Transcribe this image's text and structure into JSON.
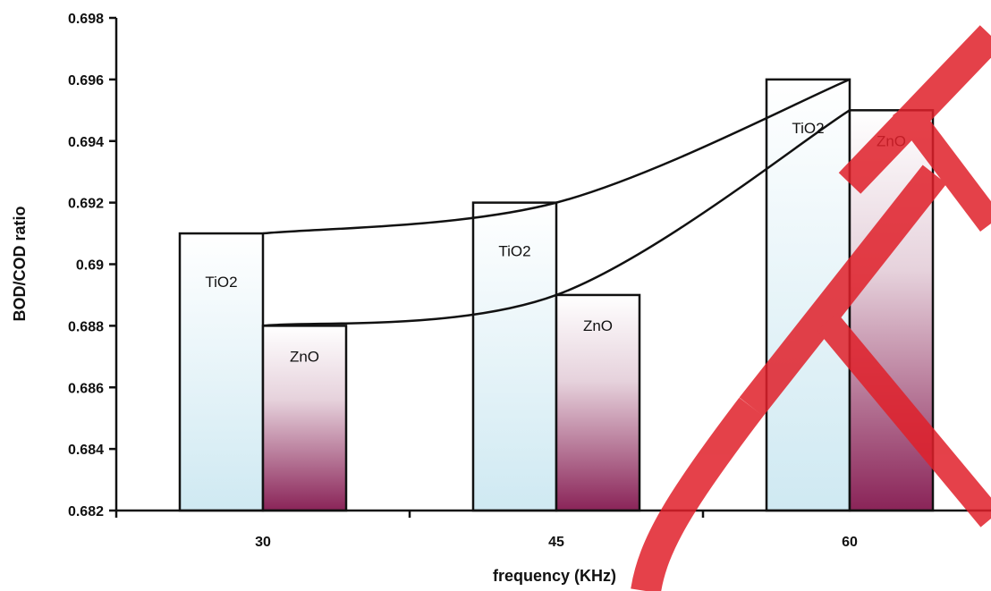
{
  "chart_data": {
    "type": "bar",
    "xlabel": "frequency (KHz)",
    "ylabel": "BOD/COD ratio",
    "categories": [
      "30",
      "45",
      "60"
    ],
    "ylim": [
      0.682,
      0.698
    ],
    "y_ticks": [
      "0.682",
      "0.684",
      "0.686",
      "0.688",
      "0.69",
      "0.692",
      "0.694",
      "0.696",
      "0.698"
    ],
    "series": [
      {
        "name": "TiO2",
        "values": [
          0.691,
          0.692,
          0.696
        ],
        "bar_labels": [
          "TiO2",
          "TiO2",
          "TiO2"
        ]
      },
      {
        "name": "ZnO",
        "values": [
          0.688,
          0.689,
          0.695
        ],
        "bar_labels": [
          "ZnO",
          "ZnO",
          "ZnO"
        ]
      }
    ],
    "trendlines": true,
    "grid": false,
    "legend": "none"
  },
  "colors": {
    "tio2_top": "#ffffff",
    "tio2_bottom": "#cfe9f2",
    "zno_top": "#ffffff",
    "zno_bottom": "#8a2458",
    "watermark": "#e0202a"
  }
}
